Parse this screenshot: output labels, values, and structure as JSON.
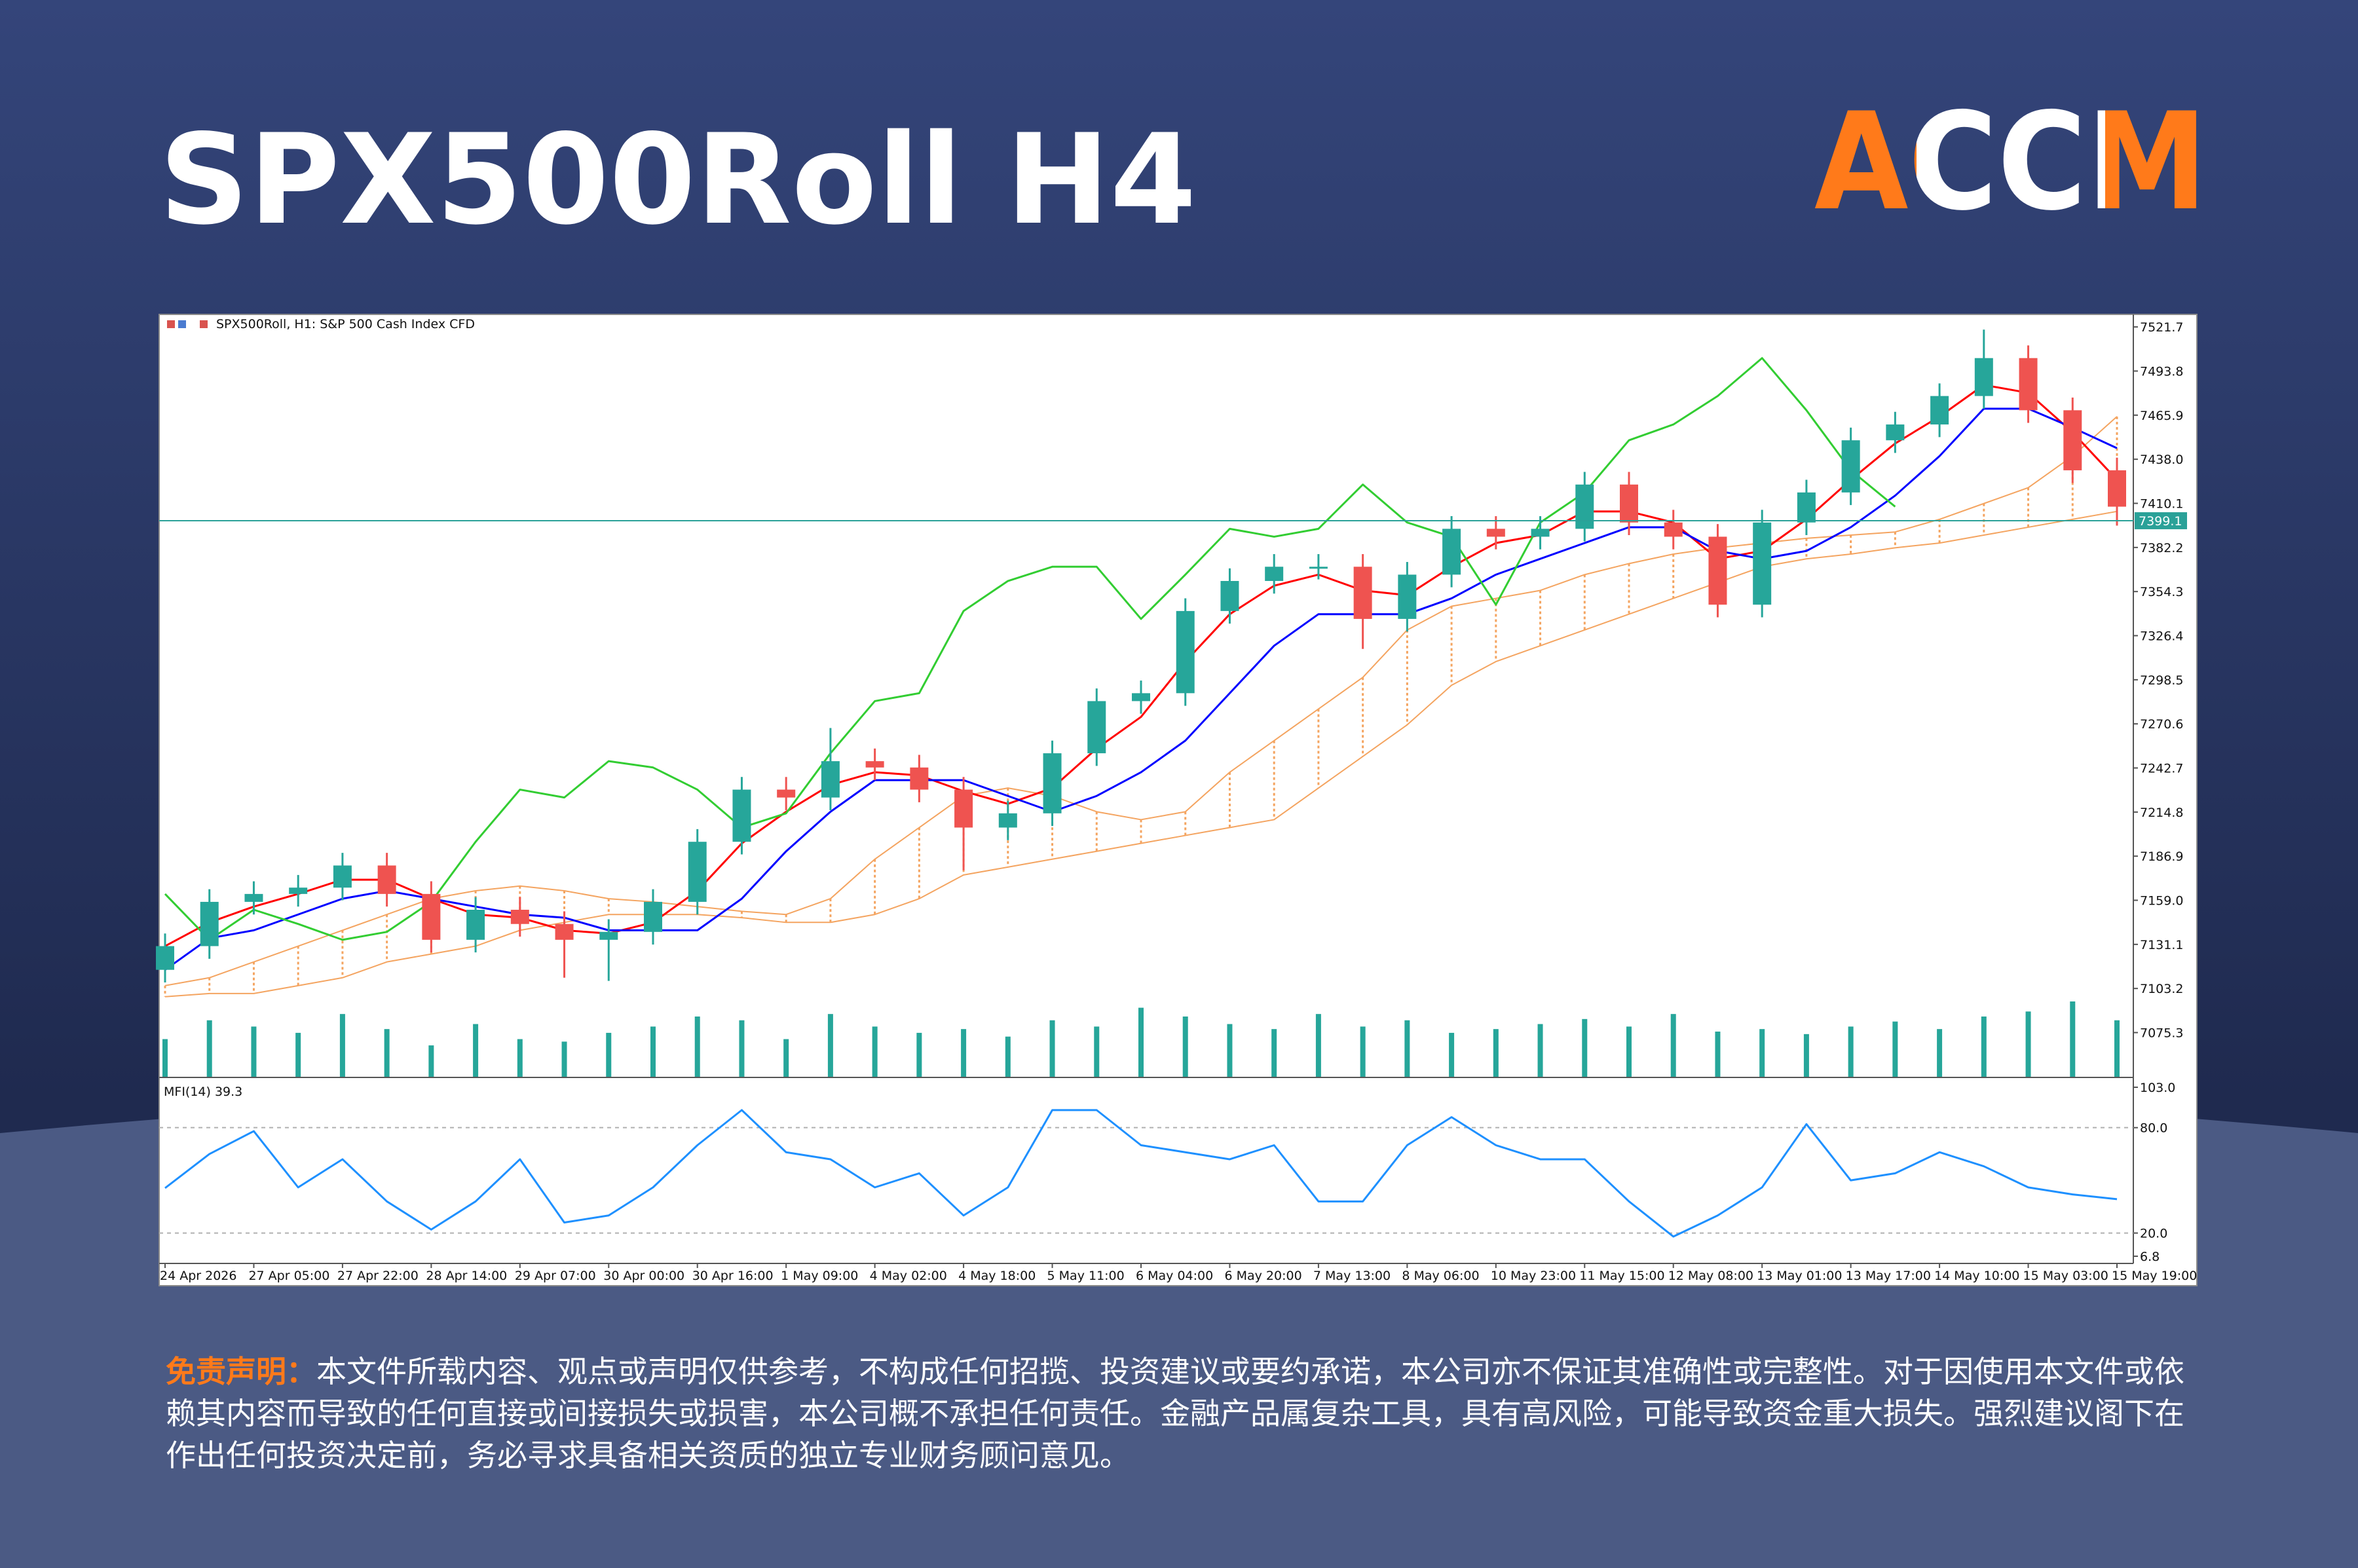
{
  "title": "SPX500Roll H4",
  "logo": "ACCM",
  "disclaimer": {
    "label": "免责声明：",
    "text": "本文件所载内容、观点或声明仅供参考，不构成任何招揽、投资建议或要约承诺，本公司亦不保证其准确性或完整性。对于因使用本文件或依赖其内容而导致的任何直接或间接损失或损害，本公司概不承担任何责任。金融产品属复杂工具，具有高风险，可能导致资金重大损失。强烈建议阁下在作出任何投资决定前，务必寻求具备相关资质的独立专业财务顾问意见。"
  },
  "chart_data": [
    {
      "type": "candlestick",
      "title": "SPX500Roll, H1:  S&P 500 Cash Index CFD",
      "categories": [
        "24 Apr 2026",
        null,
        "27 Apr 05:00",
        null,
        "27 Apr 22:00",
        null,
        "28 Apr 14:00",
        null,
        "29 Apr 07:00",
        null,
        "30 Apr 00:00",
        null,
        "30 Apr 16:00",
        null,
        "1 May 09:00",
        null,
        "4 May 02:00",
        null,
        "4 May 18:00",
        null,
        "5 May 11:00",
        null,
        "6 May 04:00",
        null,
        "6 May 20:00",
        null,
        "7 May 13:00",
        null,
        "8 May 06:00",
        null,
        "10 May 23:00",
        null,
        "11 May 15:00",
        null,
        "12 May 08:00",
        null,
        "13 May 01:00",
        null,
        "13 May 17:00",
        null,
        "14 May 10:00",
        null,
        "15 May 03:00",
        null,
        "15 May 19:00"
      ],
      "open": [
        7115,
        7130,
        7158,
        7163,
        7167,
        7181,
        7163,
        7134,
        7153,
        7144,
        7134,
        7139,
        7158,
        7196,
        7229,
        7224,
        7247,
        7243,
        7229,
        7205,
        7214,
        7252,
        7285,
        7290,
        7342,
        7361,
        7370,
        7370,
        7337,
        7365,
        7394,
        7389,
        7394,
        7422,
        7398,
        7389,
        7346,
        7398,
        7417,
        7450,
        7460,
        7478,
        7502,
        7469,
        7431
      ],
      "high": [
        7138,
        7166,
        7171,
        7175,
        7189,
        7189,
        7171,
        7161,
        7161,
        7152,
        7147,
        7166,
        7204,
        7237,
        7237,
        7268,
        7255,
        7251,
        7237,
        7222,
        7260,
        7293,
        7298,
        7350,
        7369,
        7378,
        7378,
        7378,
        7373,
        7402,
        7402,
        7402,
        7430,
        7430,
        7406,
        7397,
        7406,
        7425,
        7458,
        7468,
        7486,
        7520,
        7510,
        7477,
        7439
      ],
      "low": [
        7107,
        7122,
        7150,
        7155,
        7159,
        7155,
        7126,
        7126,
        7136,
        7110,
        7108,
        7131,
        7150,
        7188,
        7216,
        7216,
        7235,
        7221,
        7178,
        7197,
        7206,
        7244,
        7277,
        7282,
        7334,
        7353,
        7362,
        7318,
        7329,
        7357,
        7381,
        7381,
        7386,
        7390,
        7381,
        7338,
        7338,
        7390,
        7409,
        7442,
        7452,
        7470,
        7461,
        7423,
        7396
      ],
      "close": [
        7130,
        7158,
        7163,
        7167,
        7181,
        7163,
        7134,
        7153,
        7144,
        7134,
        7139,
        7158,
        7196,
        7229,
        7224,
        7247,
        7243,
        7229,
        7205,
        7214,
        7252,
        7285,
        7290,
        7342,
        7361,
        7370,
        7370,
        7337,
        7365,
        7394,
        7389,
        7394,
        7422,
        7398,
        7389,
        7346,
        7398,
        7417,
        7450,
        7460,
        7478,
        7502,
        7469,
        7431,
        7408
      ],
      "up_color": "#26a69a",
      "down_color": "#ef5350",
      "ylim": [
        7049,
        7525.5
      ],
      "yticks": [
        7521.7,
        7493.8,
        7465.9,
        {
          "value": 7438,
          "label": "7438.0"
        },
        7410.1,
        7382.2,
        7354.3,
        7326.4,
        7298.5,
        7270.6,
        7242.7,
        7214.8,
        7186.9,
        {
          "value": 7159,
          "label": "7159.0"
        },
        7131.1,
        7103.2,
        7075.3
      ],
      "last_price": 7399.1,
      "last_price_color": "#2aa198",
      "overlays": [
        {
          "color": "#ff0000",
          "values": [
            7130,
            7145,
            7155,
            7163,
            7172,
            7172,
            7160,
            7150,
            7148,
            7140,
            7138,
            7145,
            7165,
            7195,
            7215,
            7232,
            7240,
            7238,
            7228,
            7220,
            7230,
            7255,
            7275,
            7310,
            7340,
            7358,
            7365,
            7355,
            7352,
            7370,
            7385,
            7390,
            7405,
            7405,
            7398,
            7375,
            7380,
            7400,
            7425,
            7448,
            7465,
            7485,
            7480,
            7455,
            7425
          ]
        },
        {
          "color": "#0000ff",
          "values": [
            7115,
            7135,
            7140,
            7150,
            7160,
            7165,
            7160,
            7155,
            7150,
            7148,
            7140,
            7140,
            7140,
            7160,
            7190,
            7215,
            7235,
            7235,
            7235,
            7225,
            7215,
            7225,
            7240,
            7260,
            7290,
            7320,
            7340,
            7340,
            7340,
            7350,
            7365,
            7375,
            7385,
            7395,
            7395,
            7380,
            7375,
            7380,
            7395,
            7415,
            7440,
            7470,
            7470,
            7458,
            7445
          ]
        },
        {
          "color": "#32cd32",
          "values": [
            7163,
            7134,
            7153,
            7144,
            7134,
            7139,
            7158,
            7196,
            7229,
            7224,
            7247,
            7243,
            7229,
            7205,
            7214,
            7252,
            7285,
            7290,
            7342,
            7361,
            7370,
            7370,
            7337,
            7365,
            7394,
            7389,
            7394,
            7422,
            7398,
            7389,
            7346,
            7398,
            7417,
            7450,
            7460,
            7478,
            7502,
            7469,
            7431,
            7408,
            null,
            null,
            null,
            null,
            null
          ]
        }
      ],
      "cloud": {
        "color": "#f4a460",
        "upper": [
          7105,
          7110,
          7120,
          7130,
          7140,
          7150,
          7160,
          7165,
          7168,
          7165,
          7160,
          7158,
          7155,
          7152,
          7150,
          7160,
          7185,
          7205,
          7225,
          7230,
          7225,
          7215,
          7210,
          7215,
          7240,
          7260,
          7280,
          7300,
          7330,
          7345,
          7350,
          7355,
          7365,
          7372,
          7378,
          7382,
          7385,
          7388,
          7390,
          7392,
          7400,
          7410,
          7420,
          7440,
          7465
        ],
        "lower": [
          7098,
          7100,
          7100,
          7105,
          7110,
          7120,
          7125,
          7130,
          7140,
          7145,
          7150,
          7150,
          7150,
          7148,
          7145,
          7145,
          7150,
          7160,
          7175,
          7180,
          7185,
          7190,
          7195,
          7200,
          7205,
          7210,
          7230,
          7250,
          7270,
          7295,
          7310,
          7320,
          7330,
          7340,
          7350,
          7360,
          7370,
          7375,
          7378,
          7382,
          7385,
          7390,
          7395,
          7400,
          7405
        ]
      },
      "volume": {
        "color": "#26a69a",
        "values": [
          30,
          45,
          40,
          35,
          50,
          38,
          25,
          42,
          30,
          28,
          35,
          40,
          48,
          45,
          30,
          50,
          40,
          35,
          38,
          32,
          45,
          40,
          55,
          48,
          42,
          38,
          50,
          40,
          45,
          35,
          38,
          42,
          46,
          40,
          50,
          36,
          38,
          34,
          40,
          44,
          38,
          48,
          52,
          60,
          45
        ]
      }
    },
    {
      "type": "line",
      "title": "MFI(14) 39.3",
      "color": "#1e90ff",
      "values": [
        45.6,
        65,
        78,
        46,
        62,
        38,
        22,
        38,
        62,
        26,
        30,
        46,
        70,
        90,
        66,
        62,
        46,
        54,
        30,
        46,
        90,
        90,
        70,
        66,
        62,
        70,
        38,
        38,
        70,
        86,
        70,
        62,
        62,
        38,
        18,
        30,
        46,
        82,
        50,
        54,
        66,
        58,
        46,
        42,
        39.3
      ],
      "ylim": [
        6.8,
        103
      ],
      "yticks": [
        {
          "value": 103,
          "label": "103.0"
        },
        {
          "value": 80,
          "label": "80.0"
        },
        {
          "value": 20,
          "label": "20.0"
        },
        6.8
      ]
    }
  ]
}
